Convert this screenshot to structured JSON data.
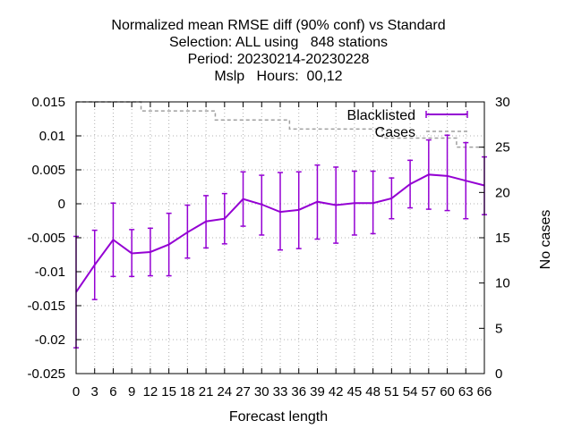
{
  "chart_data": {
    "type": "line",
    "title_lines": [
      "Normalized mean RMSE diff (90% conf) vs Standard",
      "Selection: ALL using   848 stations",
      "Period: 20230214-20230228",
      "Mslp   Hours:  00,12"
    ],
    "xlabel": "Forecast length",
    "ylabel": "",
    "y2label": "No cases",
    "xlim": [
      0,
      66
    ],
    "ylim": [
      -0.025,
      0.015
    ],
    "y2lim": [
      0,
      30
    ],
    "x_ticks": [
      0,
      3,
      6,
      9,
      12,
      15,
      18,
      21,
      24,
      27,
      30,
      33,
      36,
      39,
      42,
      45,
      48,
      51,
      54,
      57,
      60,
      63,
      66
    ],
    "y_ticks": [
      0.015,
      0.01,
      0.005,
      0,
      -0.005,
      -0.01,
      -0.015,
      -0.02,
      -0.025
    ],
    "y_tick_labels": [
      "0.015",
      "0.01",
      "0.005",
      "0",
      "-0.005",
      "-0.01",
      "-0.015",
      "-0.02",
      "-0.025"
    ],
    "y2_ticks": [
      30,
      25,
      20,
      15,
      10,
      5,
      0
    ],
    "grid": true,
    "legend_position": "top-right",
    "series": [
      {
        "name": "Blacklisted",
        "color": "#9400d3",
        "style": "line-errorbars",
        "x": [
          0,
          3,
          6,
          9,
          12,
          15,
          18,
          21,
          24,
          27,
          30,
          33,
          36,
          39,
          42,
          45,
          48,
          51,
          54,
          57,
          60,
          63,
          66
        ],
        "y": [
          -0.013,
          -0.009,
          -0.0053,
          -0.0073,
          -0.0071,
          -0.006,
          -0.0042,
          -0.0026,
          -0.0022,
          0.0007,
          -0.0001,
          -0.0012,
          -0.0009,
          0.0003,
          -0.0002,
          0.0001,
          0.0001,
          0.0008,
          0.0029,
          0.0043,
          0.0041,
          0.0034,
          0.0027
        ],
        "err_low": [
          -0.0212,
          -0.0141,
          -0.0107,
          -0.0107,
          -0.0106,
          -0.0106,
          -0.008,
          -0.0065,
          -0.0059,
          -0.0033,
          -0.0046,
          -0.0068,
          -0.0066,
          -0.0052,
          -0.0058,
          -0.0046,
          -0.0044,
          -0.0022,
          -0.0006,
          -0.0008,
          -0.001,
          -0.0022,
          -0.0016
        ],
        "err_high": [
          -0.0048,
          -0.0039,
          0.0001,
          -0.0038,
          -0.0036,
          -0.0014,
          -0.0002,
          0.0012,
          0.0015,
          0.0047,
          0.0042,
          0.0046,
          0.0047,
          0.0057,
          0.0054,
          0.0048,
          0.0048,
          0.0038,
          0.0064,
          0.0094,
          0.0101,
          0.009,
          0.0069
        ]
      },
      {
        "name": "Cases",
        "color": "#a0a0a0",
        "style": "dashed-step",
        "axis": "right",
        "x": [
          0,
          3,
          6,
          9,
          12,
          15,
          18,
          21,
          24,
          27,
          30,
          33,
          36,
          39,
          42,
          45,
          48,
          51,
          54,
          57,
          60,
          63,
          66
        ],
        "y": [
          30,
          30,
          30,
          30,
          29,
          29,
          29,
          29,
          28,
          28,
          28,
          28,
          27,
          27,
          27,
          27,
          27,
          26,
          26,
          26,
          26,
          25,
          25
        ]
      }
    ]
  }
}
